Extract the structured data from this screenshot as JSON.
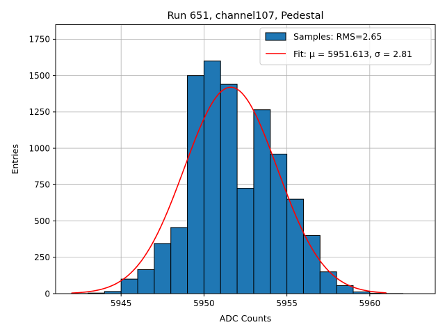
{
  "chart_data": {
    "type": "bar",
    "title": "Run 651, channel107, Pedestal",
    "xlabel": "ADC Counts",
    "ylabel": "Entries",
    "xlim": [
      5941.05,
      5963.95
    ],
    "ylim": [
      0,
      1850
    ],
    "xticks": [
      5945,
      5950,
      5955,
      5960
    ],
    "yticks": [
      0,
      250,
      500,
      750,
      1000,
      1250,
      1500,
      1750
    ],
    "grid": true,
    "legend_position": "top-right",
    "bins": {
      "left_edges": [
        5942,
        5943,
        5944,
        5945,
        5946,
        5947,
        5948,
        5949,
        5950,
        5951,
        5952,
        5953,
        5954,
        5955,
        5956,
        5957,
        5958,
        5959,
        5960,
        5961,
        5962
      ],
      "width": 1,
      "values": [
        1,
        4,
        15,
        100,
        165,
        345,
        455,
        1500,
        1600,
        1440,
        725,
        1265,
        960,
        650,
        400,
        150,
        55,
        12,
        3,
        1,
        0
      ]
    },
    "series": [
      {
        "name": "Samples: RMS=2.65",
        "kind": "histogram",
        "color": "#1f77b4",
        "edge_color": "#000000"
      },
      {
        "name": "Fit: μ = 5951.613, σ = 2.81",
        "kind": "line",
        "color": "#ff0000",
        "mu": 5951.613,
        "sigma": 2.81,
        "amplitude": 1420,
        "x_range": [
          5942,
          5961
        ]
      }
    ]
  }
}
